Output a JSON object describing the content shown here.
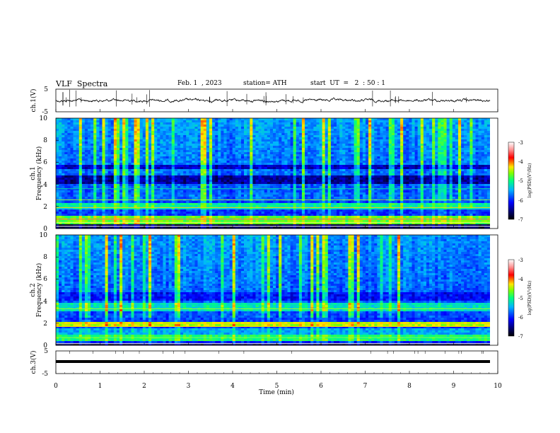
{
  "header": {
    "title": "VLF  Spectra",
    "date": "Feb. 1  , 2023",
    "station": "station= ATH",
    "start": "start  UT  =   2  : 50 : 1"
  },
  "chart_data": [
    {
      "type": "line",
      "name": "ch1-voltage",
      "ylabel": "ch.1(V)",
      "ylim": [
        -5,
        5
      ],
      "yticks": [
        "5",
        "-5"
      ],
      "xlim": [
        0,
        10
      ]
    },
    {
      "type": "heatmap",
      "name": "ch1-spectrogram",
      "ylabel_line1": "ch.1",
      "ylabel_line2": "Frequency  (kHz)",
      "ylim": [
        0,
        10
      ],
      "yticks": [
        "0",
        "2",
        "4",
        "6",
        "8",
        "10"
      ],
      "xlim": [
        0,
        10
      ],
      "colorbar": {
        "label": "log(PSD)(V²/Hz)",
        "range": [
          -7,
          -3
        ],
        "ticks": [
          "-3",
          "-4",
          "-5",
          "-6",
          "-7"
        ]
      }
    },
    {
      "type": "heatmap",
      "name": "ch2-spectrogram",
      "ylabel_line1": "ch.2",
      "ylabel_line2": "Frequency  (kHz)",
      "ylim": [
        0,
        10
      ],
      "yticks": [
        "0",
        "2",
        "4",
        "6",
        "8",
        "10"
      ],
      "xlim": [
        0,
        10
      ],
      "colorbar": {
        "label": "log(PSD)(V²/Hz)",
        "range": [
          -7,
          -3
        ],
        "ticks": [
          "-3",
          "-4",
          "-5",
          "-6",
          "-7"
        ]
      }
    },
    {
      "type": "line",
      "name": "ch3-voltage",
      "ylabel": "ch.3(V)",
      "ylim": [
        -5,
        5
      ],
      "yticks": [
        "5",
        "-5"
      ],
      "xlim": [
        0,
        10
      ],
      "xlabel": "Time  (min)",
      "xticks": [
        "0",
        "1",
        "2",
        "3",
        "4",
        "5",
        "6",
        "7",
        "8",
        "9",
        "10"
      ]
    }
  ]
}
